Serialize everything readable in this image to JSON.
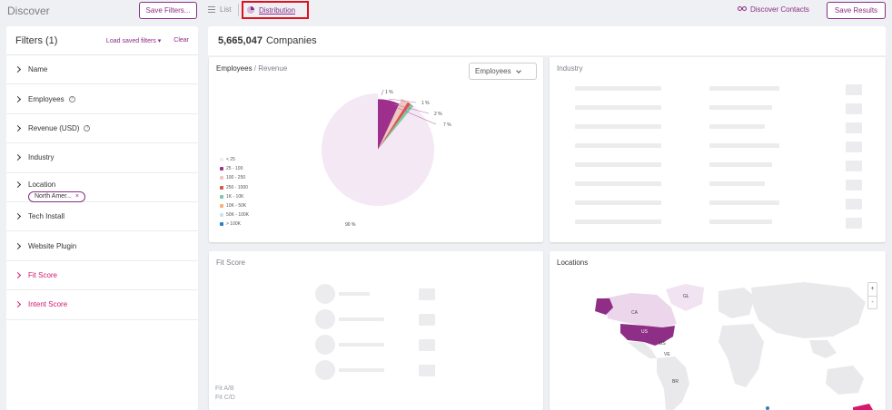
{
  "topbar": {
    "app_title": "Discover",
    "save_filters_label": "Save Filters...",
    "list_label": "List",
    "distribution_label": "Distribution",
    "discover_contacts_label": "Discover Contacts",
    "save_results_label": "Save Results"
  },
  "filters": {
    "title": "Filters (1)",
    "load_saved_label": "Load saved filters",
    "clear_label": "Clear",
    "items": [
      {
        "label": "Name"
      },
      {
        "label": "Employees"
      },
      {
        "label": "Revenue (USD)"
      },
      {
        "label": "Industry"
      },
      {
        "label": "Location",
        "chip": "North Amer...",
        "chip_close": "×"
      },
      {
        "label": "Tech Install"
      },
      {
        "label": "Website Plugin"
      },
      {
        "label": "Fit Score"
      },
      {
        "label": "Intent Score"
      }
    ]
  },
  "main": {
    "count": "5,665,047",
    "count_label": "Companies"
  },
  "employees_card": {
    "title_main": "Employees",
    "title_sep": " / ",
    "title_alt": "Revenue",
    "select_value": "Employees"
  },
  "industry_card": {
    "title": "Industry"
  },
  "fit_card": {
    "title": "Fit Score",
    "footer_1": "Fit A/B",
    "footer_2": "Fit C/D"
  },
  "locations_card": {
    "title": "Locations",
    "zoom_in": "+",
    "zoom_out": "-",
    "labels": [
      "GL",
      "CA",
      "US",
      "BS",
      "VE",
      "BR"
    ]
  },
  "chart_data": {
    "type": "pie",
    "slices": [
      {
        "label": "< 25",
        "value": 90,
        "color": "#f4e8f4"
      },
      {
        "label": "25 - 100",
        "value": 7,
        "color": "#9e2f8c"
      },
      {
        "label": "100 - 250",
        "value": 2,
        "color": "#f0c6c0"
      },
      {
        "label": "250 - 1000",
        "value": 1,
        "color": "#d9534f"
      },
      {
        "label": "1K - 10K",
        "value": 1,
        "color": "#7ac9a3"
      },
      {
        "label": "10K - 50K",
        "value": 0,
        "color": "#f2b27a"
      },
      {
        "label": "50K - 100K",
        "value": 0,
        "color": "#c9e3f2"
      },
      {
        "label": "> 100K",
        "value": 0,
        "color": "#2d7fc1"
      }
    ],
    "data_labels": [
      "90 %",
      "7 %",
      "2 %",
      "1 %",
      "1 %"
    ],
    "legend_position": "left"
  }
}
